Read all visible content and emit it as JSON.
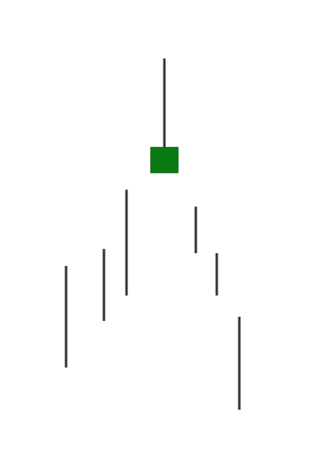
{
  "chart_data": {
    "type": "candlestick",
    "title": "",
    "xlabel": "",
    "ylabel": "",
    "grid": false,
    "legend": "none",
    "colors": {
      "wick": "#333333",
      "bullish_body": "#0a7a12",
      "body_outline": "#0b5f10",
      "background": "#ffffff"
    },
    "ylim": [
      0,
      100
    ],
    "candles": [
      {
        "index": 1,
        "open": 29,
        "high": 41,
        "low": 17,
        "close": 29
      },
      {
        "index": 2,
        "open": 36,
        "high": 45,
        "low": 28,
        "close": 36
      },
      {
        "index": 3,
        "open": 47,
        "high": 59,
        "low": 34,
        "close": 47
      },
      {
        "index": 4,
        "open": 63,
        "high": 90,
        "low": 63,
        "close": 69
      },
      {
        "index": 5,
        "open": 50,
        "high": 55,
        "low": 44,
        "close": 50
      },
      {
        "index": 6,
        "open": 40,
        "high": 44,
        "low": 34,
        "close": 40
      },
      {
        "index": 7,
        "open": 16,
        "high": 29,
        "low": 7,
        "close": 16
      }
    ]
  }
}
